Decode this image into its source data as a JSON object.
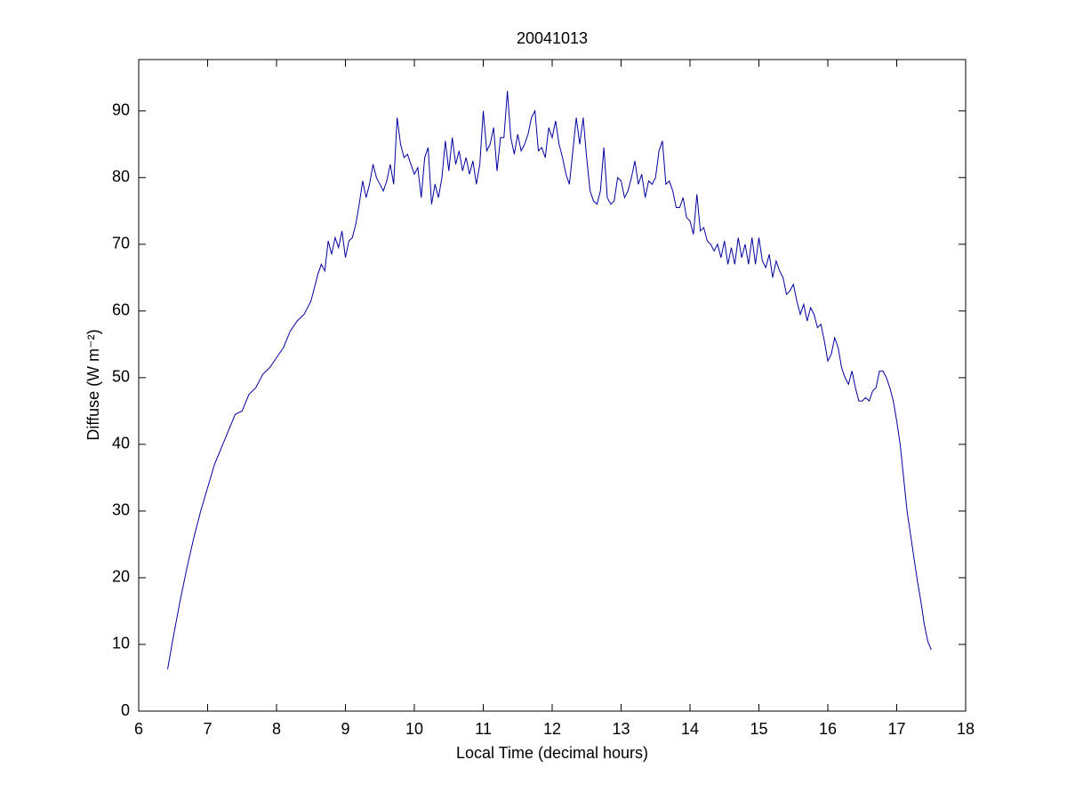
{
  "chart_data": {
    "type": "line",
    "title": "20041013",
    "xlabel": "Local Time (decimal hours)",
    "ylabel": "Diffuse (W m⁻²)",
    "color": "#0000a0",
    "xlim": [
      6,
      18
    ],
    "xticks": [
      6,
      7,
      8,
      9,
      10,
      11,
      12,
      13,
      14,
      15,
      16,
      17,
      18
    ],
    "ylim": [
      0,
      97.7
    ],
    "yticks": [
      0,
      10,
      20,
      30,
      40,
      50,
      60,
      70,
      80,
      90
    ],
    "x": [
      6.42,
      6.5,
      6.6,
      6.7,
      6.8,
      6.9,
      7.0,
      7.1,
      7.2,
      7.3,
      7.4,
      7.5,
      7.6,
      7.7,
      7.8,
      7.9,
      8.0,
      8.1,
      8.2,
      8.3,
      8.4,
      8.5,
      8.6,
      8.65,
      8.7,
      8.75,
      8.8,
      8.85,
      8.9,
      8.95,
      9.0,
      9.05,
      9.1,
      9.15,
      9.2,
      9.25,
      9.3,
      9.35,
      9.4,
      9.45,
      9.5,
      9.55,
      9.6,
      9.65,
      9.7,
      9.75,
      9.8,
      9.85,
      9.9,
      9.95,
      10.0,
      10.05,
      10.1,
      10.15,
      10.2,
      10.25,
      10.3,
      10.35,
      10.4,
      10.45,
      10.5,
      10.55,
      10.6,
      10.65,
      10.7,
      10.75,
      10.8,
      10.85,
      10.9,
      10.95,
      11.0,
      11.05,
      11.1,
      11.15,
      11.2,
      11.25,
      11.3,
      11.35,
      11.4,
      11.45,
      11.5,
      11.55,
      11.6,
      11.65,
      11.7,
      11.75,
      11.8,
      11.85,
      11.9,
      11.95,
      12.0,
      12.05,
      12.1,
      12.15,
      12.2,
      12.25,
      12.3,
      12.35,
      12.4,
      12.45,
      12.5,
      12.55,
      12.6,
      12.65,
      12.7,
      12.75,
      12.8,
      12.85,
      12.9,
      12.95,
      13.0,
      13.05,
      13.1,
      13.15,
      13.2,
      13.25,
      13.3,
      13.35,
      13.4,
      13.45,
      13.5,
      13.55,
      13.6,
      13.65,
      13.7,
      13.75,
      13.8,
      13.85,
      13.9,
      13.95,
      14.0,
      14.05,
      14.1,
      14.15,
      14.2,
      14.25,
      14.3,
      14.35,
      14.4,
      14.45,
      14.5,
      14.55,
      14.6,
      14.65,
      14.7,
      14.75,
      14.8,
      14.85,
      14.9,
      14.95,
      15.0,
      15.05,
      15.1,
      15.15,
      15.2,
      15.25,
      15.3,
      15.35,
      15.4,
      15.45,
      15.5,
      15.55,
      15.6,
      15.65,
      15.7,
      15.75,
      15.8,
      15.85,
      15.9,
      15.95,
      16.0,
      16.05,
      16.1,
      16.15,
      16.2,
      16.25,
      16.3,
      16.35,
      16.4,
      16.45,
      16.5,
      16.55,
      16.6,
      16.65,
      16.7,
      16.75,
      16.8,
      16.85,
      16.9,
      16.95,
      17.0,
      17.05,
      17.1,
      17.15,
      17.2,
      17.25,
      17.3,
      17.35,
      17.4,
      17.45,
      17.5
    ],
    "values": [
      6.3,
      11,
      16.5,
      21.5,
      26,
      30,
      33.5,
      37,
      39.5,
      42,
      44.5,
      45,
      47.5,
      48.5,
      50.5,
      51.5,
      53,
      54.5,
      57,
      58.5,
      59.5,
      61.5,
      65.5,
      67,
      66,
      70.5,
      68.5,
      71,
      69.5,
      72,
      68,
      70.5,
      71,
      73,
      76,
      79.5,
      77,
      79,
      82,
      80,
      79,
      78,
      79.5,
      82,
      79,
      89,
      85,
      83,
      83.5,
      82,
      80.5,
      81.5,
      77,
      83,
      84.5,
      76,
      79,
      77,
      80,
      85.5,
      81,
      86,
      82,
      84,
      81,
      83,
      80.5,
      82.5,
      79,
      82,
      90,
      84,
      85,
      87.5,
      81,
      86,
      86,
      93,
      86,
      83.5,
      86.5,
      84,
      85,
      86.5,
      89,
      90,
      84,
      84.5,
      83,
      87.5,
      86,
      88.5,
      85,
      83,
      80.5,
      79,
      84,
      89,
      85,
      89,
      83,
      78,
      76.5,
      76,
      78,
      84.5,
      77,
      76,
      76.5,
      80,
      79.5,
      77,
      78,
      80,
      82.5,
      79,
      80.5,
      77,
      79.5,
      79,
      80,
      84,
      85.5,
      79,
      79.5,
      78,
      75.5,
      75.5,
      77,
      74,
      73.5,
      71.5,
      77.5,
      72,
      72.5,
      70.5,
      70,
      69,
      70,
      68,
      70.5,
      67,
      69.5,
      67,
      71,
      68,
      70,
      67,
      71,
      67,
      71,
      67.5,
      66.5,
      68.5,
      65,
      67.5,
      66,
      65,
      62.5,
      63,
      64,
      61.5,
      59.5,
      61,
      58.5,
      60.5,
      59.5,
      57.5,
      58,
      55.5,
      52.5,
      53.5,
      56,
      54.5,
      51.5,
      50,
      49,
      51,
      48.5,
      46.5,
      46.5,
      47,
      46.5,
      48,
      48.5,
      51,
      51,
      50,
      48.5,
      46.5,
      43.5,
      40,
      35,
      30,
      26.5,
      23,
      19.5,
      16.5,
      13,
      10.5,
      9.2
    ]
  }
}
